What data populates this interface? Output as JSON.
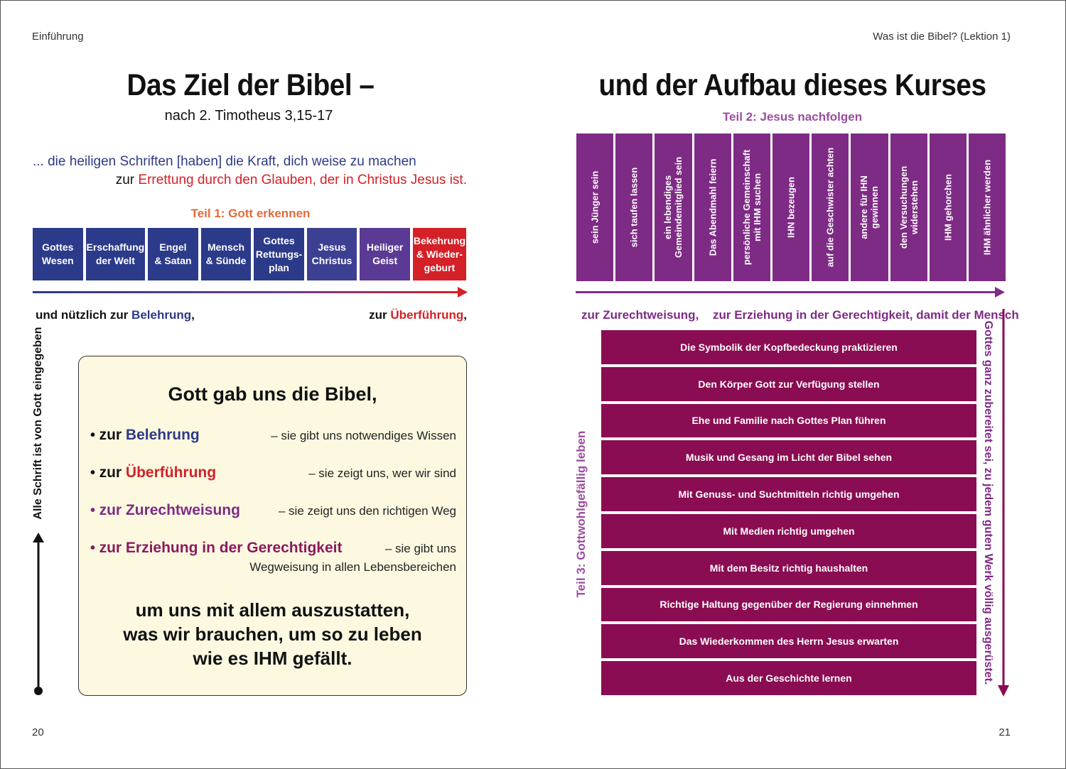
{
  "header": {
    "left": "Einführung",
    "right": "Was ist die Bibel? (Lektion 1)"
  },
  "page_numbers": {
    "left": "20",
    "right": "21"
  },
  "title": {
    "left": "Das Ziel der Bibel –",
    "right": "und der Aufbau dieses Kurses",
    "subtitle": "nach 2. Timotheus 3,15-17"
  },
  "quote": {
    "line1": "... die heiligen Schriften [haben] die Kraft, dich weise zu machen",
    "line2_prefix": "zur ",
    "line2_red": "Errettung durch den Glauben, der in Christus Jesus ist."
  },
  "teil1": {
    "heading": "Teil 1: Gott erkennen",
    "boxes": [
      "Gottes\nWesen",
      "Erschaffung\nder Welt",
      "Engel\n& Satan",
      "Mensch\n& Sünde",
      "Gottes\nRettungs-\nplan",
      "Jesus\nChristus",
      "Heiliger\nGeist",
      "Bekehrung\n& Wieder-\ngeburt"
    ]
  },
  "teil2": {
    "heading": "Teil 2: Jesus nachfolgen",
    "columns": [
      "sein Jünger sein",
      "sich taufen lassen",
      "ein lebendiges\nGemeindemitglied sein",
      "Das Abendmahl feiern",
      "persönliche Gemeinschaft\nmit IHM suchen",
      "IHN bezeugen",
      "auf die Geschwister achten",
      "andere für IHN\ngewinnen",
      "den Versuchungen\nwiderstehen",
      "IHM gehorchen",
      "IHM ähnlicher werden"
    ]
  },
  "verse_row": {
    "left_plain": "und nützlich zur ",
    "left_blue": "Belehrung",
    "left_comma": ",",
    "mid_plain": "zur ",
    "mid_red": "Überführung",
    "mid_comma": ",",
    "right1": "zur Zurechtweisung,",
    "right2": "zur Erziehung in der Gerechtigkeit, damit der Mensch"
  },
  "side_text": {
    "left": "Alle Schrift ist von Gott eingegeben",
    "teil3": "Teil 3: Gottwohlgefällig leben",
    "right": "Gottes ganz zubereitet sei, zu jedem guten Werk völlig ausgerüstet."
  },
  "info_box": {
    "title": "Gott gab uns die Bibel,",
    "items": [
      {
        "bullet": "•",
        "prefix": "zur ",
        "word": "Belehrung",
        "note": "– sie gibt uns notwendiges Wissen"
      },
      {
        "bullet": "•",
        "prefix": "zur ",
        "word": "Überführung",
        "note": "– sie zeigt uns, wer wir sind"
      },
      {
        "bullet": "•",
        "prefix": "",
        "word": "zur Zurechtweisung",
        "note": "– sie zeigt uns den richtigen Weg"
      },
      {
        "bullet": "•",
        "prefix": "",
        "word": "zur Erziehung in der Gerechtigkeit",
        "note": "– sie gibt uns",
        "note2": "Wegweisung in allen Lebensbereichen"
      }
    ],
    "final_line1": "um uns mit allem auszustatten,",
    "final_line2": "was wir brauchen, um so zu leben",
    "final_line3": "wie es IHM gefällt."
  },
  "teil3": {
    "items": [
      "Die Symbolik der Kopfbedeckung praktizieren",
      "Den Körper Gott zur Verfügung stellen",
      "Ehe und Familie nach Gottes Plan führen",
      "Musik und Gesang im Licht der Bibel sehen",
      "Mit Genuss- und Suchtmitteln richtig umgehen",
      "Mit Medien richtig umgehen",
      "Mit dem Besitz richtig haushalten",
      "Richtige Haltung gegenüber der Regierung einnehmen",
      "Das Wiederkommen des Herrn Jesus erwarten",
      "Aus der Geschichte lernen"
    ]
  },
  "colors": {
    "teil1_blue": "#2c3a8a",
    "teil1_red": "#d42027",
    "teil2_purple": "#7e2b85",
    "teil3_plum": "#8a0c52",
    "box_bg": "#fdf9e1"
  }
}
